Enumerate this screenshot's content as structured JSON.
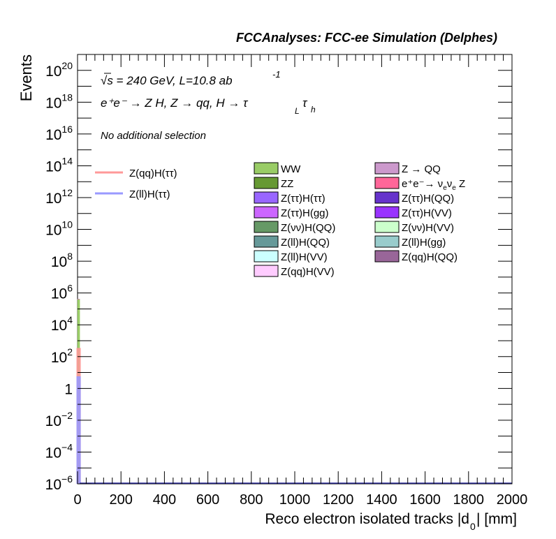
{
  "chart_data": {
    "type": "bar",
    "title": "FCCAnalyses: FCC-ee Simulation (Delphes)",
    "xlabel": "Reco electron isolated tracks |d",
    "xlabel_sub": "0",
    "xlabel_unit": "| [mm]",
    "ylabel": "Events",
    "xlim": [
      0,
      2000
    ],
    "ylim": [
      1e-06,
      1e+21
    ],
    "log_y": true,
    "grid": false,
    "x_ticks": [
      "0",
      "200",
      "400",
      "600",
      "800",
      "1000",
      "1200",
      "1400",
      "1600",
      "1800",
      "2000"
    ],
    "y_ticks": [
      {
        "base": "10",
        "exp": "−6",
        "value": 1e-06
      },
      {
        "base": "10",
        "exp": "−4",
        "value": 0.0001
      },
      {
        "base": "10",
        "exp": "−2",
        "value": 0.01
      },
      {
        "base": "1",
        "exp": "",
        "value": 1
      },
      {
        "base": "10",
        "exp": "2",
        "value": 100.0
      },
      {
        "base": "10",
        "exp": "4",
        "value": 10000.0
      },
      {
        "base": "10",
        "exp": "6",
        "value": 1000000.0
      },
      {
        "base": "10",
        "exp": "8",
        "value": 100000000.0
      },
      {
        "base": "10",
        "exp": "10",
        "value": 10000000000.0
      },
      {
        "base": "10",
        "exp": "12",
        "value": 1000000000000.0
      },
      {
        "base": "10",
        "exp": "14",
        "value": 100000000000000.0
      },
      {
        "base": "10",
        "exp": "16",
        "value": 1e+16
      },
      {
        "base": "10",
        "exp": "18",
        "value": 1e+18
      },
      {
        "base": "10",
        "exp": "20",
        "value": 1e+20
      }
    ],
    "annotations": {
      "energy": "√s = 240 GeV, L=10.8 ab",
      "energy_exp": "-1",
      "process": "e⁺e⁻ → Z H, Z → qq, H → τ",
      "process_sub1": "L",
      "process_tau": "τ",
      "process_sub2": "h",
      "selection": "No additional selection"
    },
    "bin_width": 10,
    "stack": [
      {
        "name": "WW",
        "color": "#99cc66",
        "bins": [
          [
            0,
            400000
          ]
        ]
      },
      {
        "name": "ZZ",
        "color": "#669933",
        "bins": [
          [
            0,
            2000
          ]
        ]
      },
      {
        "name": "Z(ττ)H(ττ)",
        "color": "#9966ff",
        "bins": [
          [
            0,
            3
          ]
        ]
      },
      {
        "name": "Z(ττ)H(gg)",
        "color": "#cc66ff",
        "bins": [
          [
            0,
            20
          ]
        ]
      },
      {
        "name": "Z(νν)H(QQ)",
        "color": "#669966",
        "bins": [
          [
            0,
            0.5
          ]
        ]
      },
      {
        "name": "Z(ll)H(QQ)",
        "color": "#669999",
        "bins": [
          [
            0,
            0.1
          ]
        ]
      },
      {
        "name": "Z(ll)H(VV)",
        "color": "#ccffff",
        "bins": [
          [
            0,
            0.01
          ]
        ]
      },
      {
        "name": "Z(qq)H(VV)",
        "color": "#ffccff",
        "bins": [
          [
            0,
            0.005
          ]
        ]
      },
      {
        "name": "Z → QQ",
        "color": "#cc99cc",
        "bins": [
          [
            0,
            0.002
          ]
        ]
      },
      {
        "name": "e⁺e⁻→ ν",
        "color": "#ff6699",
        "bins": [
          [
            0,
            200
          ]
        ]
      },
      {
        "name": "Z(ττ)H(QQ)",
        "color": "#6633cc",
        "bins": [
          [
            0,
            0.0005
          ]
        ]
      },
      {
        "name": "Z(ττ)H(VV)",
        "color": "#9933ff",
        "bins": [
          [
            0,
            0.0003
          ]
        ]
      },
      {
        "name": "Z(νν)H(VV)",
        "color": "#ccffcc",
        "bins": [
          [
            0,
            0.0002
          ]
        ]
      },
      {
        "name": "Z(ll)H(gg)",
        "color": "#99cccc",
        "bins": [
          [
            0,
            0.0001
          ]
        ]
      },
      {
        "name": "Z(qq)H(QQ)",
        "color": "#996699",
        "bins": [
          [
            0,
            5e-05
          ]
        ]
      }
    ],
    "signals": [
      {
        "name": "Z(qq)H(ττ)",
        "color": "#ff9999",
        "bins": [
          [
            0,
            300
          ]
        ]
      },
      {
        "name": "Z(ll)H(ττ)",
        "color": "#9999ff",
        "bins": [
          [
            0,
            5
          ]
        ]
      }
    ],
    "legend_extra": {
      "nu_e_sub": "e",
      "nu_suffix": "Z"
    }
  }
}
